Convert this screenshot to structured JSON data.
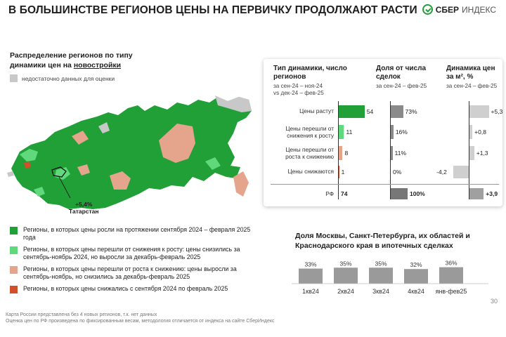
{
  "header": {
    "title": "В БОЛЬШИНСТВЕ РЕГИОНОВ ЦЕНЫ НА ПЕРВИЧКУ ПРОДОЛЖАЮТ РАСТИ",
    "brand_bold": "СБЕР",
    "brand_light": "ИНДЕКС"
  },
  "colors": {
    "dark_green": "#21a038",
    "light_green": "#5fd97b",
    "salmon": "#e5a58c",
    "red": "#d0502a",
    "gray": "#c8c8c8",
    "bar_gray": "#8a8a8a"
  },
  "map": {
    "title_line1": "Распределение регионов по типу",
    "title_line2_prefix": "динамики цен на ",
    "title_line2_link": "новостройки",
    "legend_gray": "недостаточно данных для оценки",
    "tatarstan_value": "+5,4%",
    "tatarstan_label": "Татарстан",
    "legend": [
      {
        "color": "#21a038",
        "text": "Регионы, в которых цены росли на протяжении сентября 2024 – февраля 2025 года"
      },
      {
        "color": "#5fd97b",
        "text": "Регионы, в которых цены перешли от снижения к росту: цены снизились за сентябрь-ноябрь 2024, но выросли за декабрь-февраль 2025"
      },
      {
        "color": "#e5a58c",
        "text": "Регионы, в которых цены перешли от роста к снижению: цены выросли за сентябрь-ноябрь, но снизились за декабрь-февраль 2025"
      },
      {
        "color": "#d0502a",
        "text": "Регионы, в которых цены снижались с сентября 2024 по февраль 2025"
      }
    ]
  },
  "panel": {
    "col1_title": "Тип динамики, число регионов",
    "col1_sub1": "за сен-24 – ноя-24",
    "col1_sub2": "vs дек-24 – фев-25",
    "col2_title": "Доля от числа сделок",
    "col2_sub": "за сен-24 – фев-25",
    "col3_title": "Динамика цен за м², %",
    "col3_sub": "за сен-24 – фев-25",
    "total_label": "РФ"
  },
  "chart_data": [
    {
      "type": "bar",
      "categories": [
        "Цены растут",
        "Цены перешли от снижения к росту",
        "Цены перешли от роста к снижению",
        "Цены снижаются",
        "РФ"
      ],
      "series": [
        {
          "name": "Тип динамики, число регионов",
          "values": [
            54,
            11,
            8,
            1,
            74
          ],
          "labels": [
            "54",
            "11",
            "8",
            "1",
            "74"
          ]
        },
        {
          "name": "Доля от числа сделок",
          "values": [
            73,
            16,
            11,
            0,
            100
          ],
          "labels": [
            "73%",
            "16%",
            "11%",
            "0%",
            "100%"
          ]
        },
        {
          "name": "Динамика цен за м², %",
          "values": [
            5.3,
            0.8,
            1.3,
            -4.2,
            3.9
          ],
          "labels": [
            "+5,3",
            "+0,8",
            "+1,3",
            "-4,2",
            "+3,9"
          ]
        }
      ]
    },
    {
      "type": "bar",
      "title": "Доля Москвы, Санкт-Петербурга, их областей и Краснодарского края в ипотечных сделках",
      "categories": [
        "1кв24",
        "2кв24",
        "3кв24",
        "4кв24",
        "янв-фев25"
      ],
      "values": [
        33,
        35,
        35,
        32,
        36
      ],
      "labels": [
        "33%",
        "35%",
        "35%",
        "32%",
        "36%"
      ]
    }
  ],
  "footer": {
    "page": "30",
    "note1": "Карта России представлена без 4 новых регионов, т.к. нет данных",
    "note2": "Оценка цен по РФ произведена по фиксированным весам, методология отличается от индекса на сайте СберИндекс"
  }
}
